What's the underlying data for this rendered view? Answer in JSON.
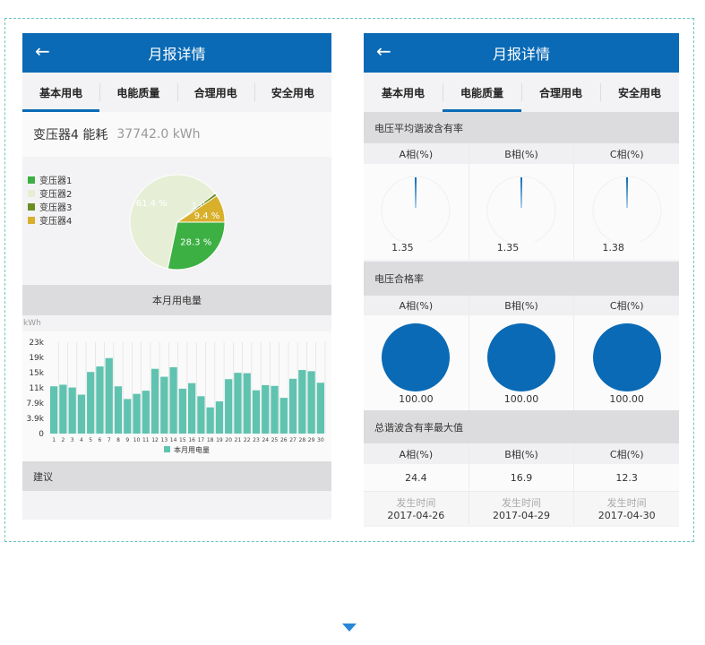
{
  "left": {
    "title": "月报详情",
    "tabs": [
      "基本用电",
      "电能质量",
      "合理用电",
      "安全用电"
    ],
    "energy": {
      "label": "变压器4 能耗",
      "value": "37742.0 kWh"
    },
    "pie": {
      "type": "pie",
      "legend_placement": "top-left",
      "labels": [
        "变压器1",
        "变压器2",
        "变压器3",
        "变压器4"
      ],
      "values": [
        28.3,
        61.4,
        1.0,
        9.4
      ],
      "value_labels": [
        "28.3 %",
        "61.4 %",
        "1.0 %",
        "9.4 %"
      ],
      "colors": [
        "#3cb043",
        "#e6efd6",
        "#6b8e23",
        "#d9b02c"
      ]
    },
    "month_section": "本月用电量",
    "advice_section": "建议"
  },
  "chart_data": {
    "type": "bar",
    "ylabel": "kWh",
    "ylim": [
      0,
      23000
    ],
    "yticks": [
      "0",
      "3.9k",
      "7.9k",
      "11k",
      "15k",
      "19k",
      "23k"
    ],
    "categories": [
      "1",
      "2",
      "3",
      "4",
      "5",
      "6",
      "7",
      "8",
      "9",
      "10",
      "11",
      "12",
      "13",
      "14",
      "15",
      "16",
      "17",
      "18",
      "19",
      "20",
      "21",
      "22",
      "23",
      "24",
      "25",
      "26",
      "27",
      "28",
      "29",
      "30"
    ],
    "series": [
      {
        "name": "本月用电量",
        "color": "#5fc3b0",
        "values": [
          11900,
          12300,
          11600,
          9800,
          15500,
          16900,
          19000,
          11900,
          8700,
          10000,
          10800,
          16300,
          14300,
          16700,
          11300,
          12700,
          9400,
          6600,
          8100,
          13700,
          15300,
          15200,
          10900,
          12200,
          12000,
          9000,
          13800,
          16000,
          15700,
          12800
        ]
      }
    ],
    "grid": "vertical",
    "legend_placement": "bottom"
  },
  "right": {
    "title": "月报详情",
    "tabs": [
      "基本用电",
      "电能质量",
      "合理用电",
      "安全用电"
    ],
    "phases": [
      "A相(%)",
      "B相(%)",
      "C相(%)"
    ],
    "avg_harmonic": {
      "title": "电压平均谐波含有率",
      "values": [
        "1.35",
        "1.35",
        "1.38"
      ]
    },
    "qualified": {
      "title": "电压合格率",
      "values": [
        "100.00",
        "100.00",
        "100.00"
      ]
    },
    "max_harmonic": {
      "title": "总谐波含有率最大值",
      "values": [
        "24.4",
        "16.9",
        "12.3"
      ],
      "time_label": "发生时间",
      "times": [
        "2017-04-26",
        "2017-04-29",
        "2017-04-30"
      ]
    },
    "accent": "#0a6ab5"
  }
}
